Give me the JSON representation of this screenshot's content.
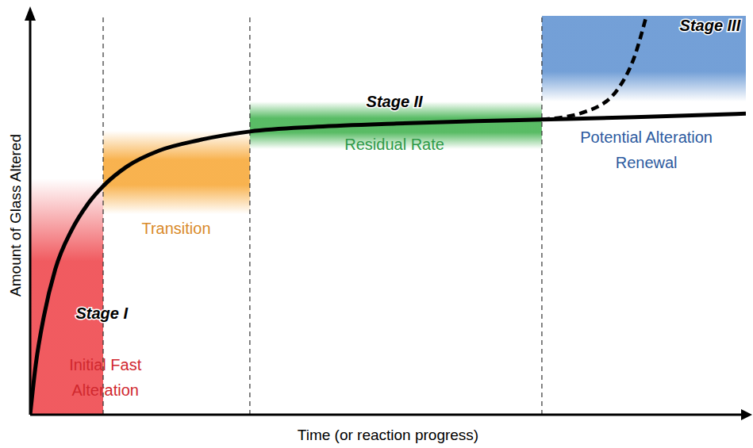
{
  "chart_data": {
    "type": "line",
    "x_label": "Time (or reaction progress)",
    "y_label": "Amount of Glass Altered",
    "xlim": [
      0,
      100
    ],
    "ylim": [
      0,
      100
    ],
    "tick_labels": false,
    "grid": false,
    "series": [
      {
        "x": [
          0,
          0.78,
          1.9,
          3.5,
          5.8,
          8.0,
          10.2,
          13.5,
          18.0,
          23.5,
          30.7,
          40.1,
          51.2,
          62.3,
          71.5,
          84.5,
          100
        ],
        "values": [
          0,
          12.5,
          24.5,
          36.4,
          46.3,
          52.7,
          57.3,
          62.2,
          66.2,
          68.8,
          71.0,
          72.2,
          73.0,
          73.6,
          74.0,
          74.6,
          75.5
        ],
        "color": "#000000",
        "line_style": "solid"
      },
      {
        "x": [
          71.5,
          77.8,
          82.3,
          84.5,
          86.1
        ],
        "values": [
          74.0,
          76.1,
          82.1,
          90.1,
          100
        ],
        "color": "#000000",
        "line_style": "dashed"
      }
    ],
    "stage_boundaries": [
      10.2,
      30.7,
      71.5
    ],
    "regions": [
      {
        "x": [
          0,
          10.2
        ],
        "y": [
          0,
          59.2
        ],
        "color": "#ee3e44"
      },
      {
        "x": [
          10.2,
          30.7
        ],
        "y": [
          50.3,
          71.2
        ],
        "color": "#f7a530"
      },
      {
        "x": [
          30.7,
          71.5
        ],
        "y": [
          66.6,
          78.5
        ],
        "color": "#3cb04a"
      },
      {
        "x": [
          71.5,
          100
        ],
        "y": [
          78.5,
          100
        ],
        "color": "#5b8fd0"
      }
    ],
    "stages": [
      {
        "text": "Stage I",
        "x": 10.0,
        "y": 25.4
      },
      {
        "text": "Stage II",
        "x": 50.9,
        "y": 78.5
      },
      {
        "text": "Stage III",
        "x": 95.0,
        "y": 97.6
      }
    ],
    "annotations": [
      {
        "lines": [
          "Initial Fast",
          "Alteration"
        ],
        "x": 10.5,
        "y": 9.3,
        "color": "#d0282e"
      },
      {
        "lines": [
          "Transition"
        ],
        "x": 20.4,
        "y": 46.7,
        "color": "#d98a2a"
      },
      {
        "lines": [
          "Residual Rate"
        ],
        "x": 50.9,
        "y": 67.8,
        "color": "#2e9a48"
      },
      {
        "lines": [
          "Potential Alteration",
          "Renewal"
        ],
        "x": 86.1,
        "y": 66.4,
        "color": "#2c5aa0"
      }
    ]
  }
}
